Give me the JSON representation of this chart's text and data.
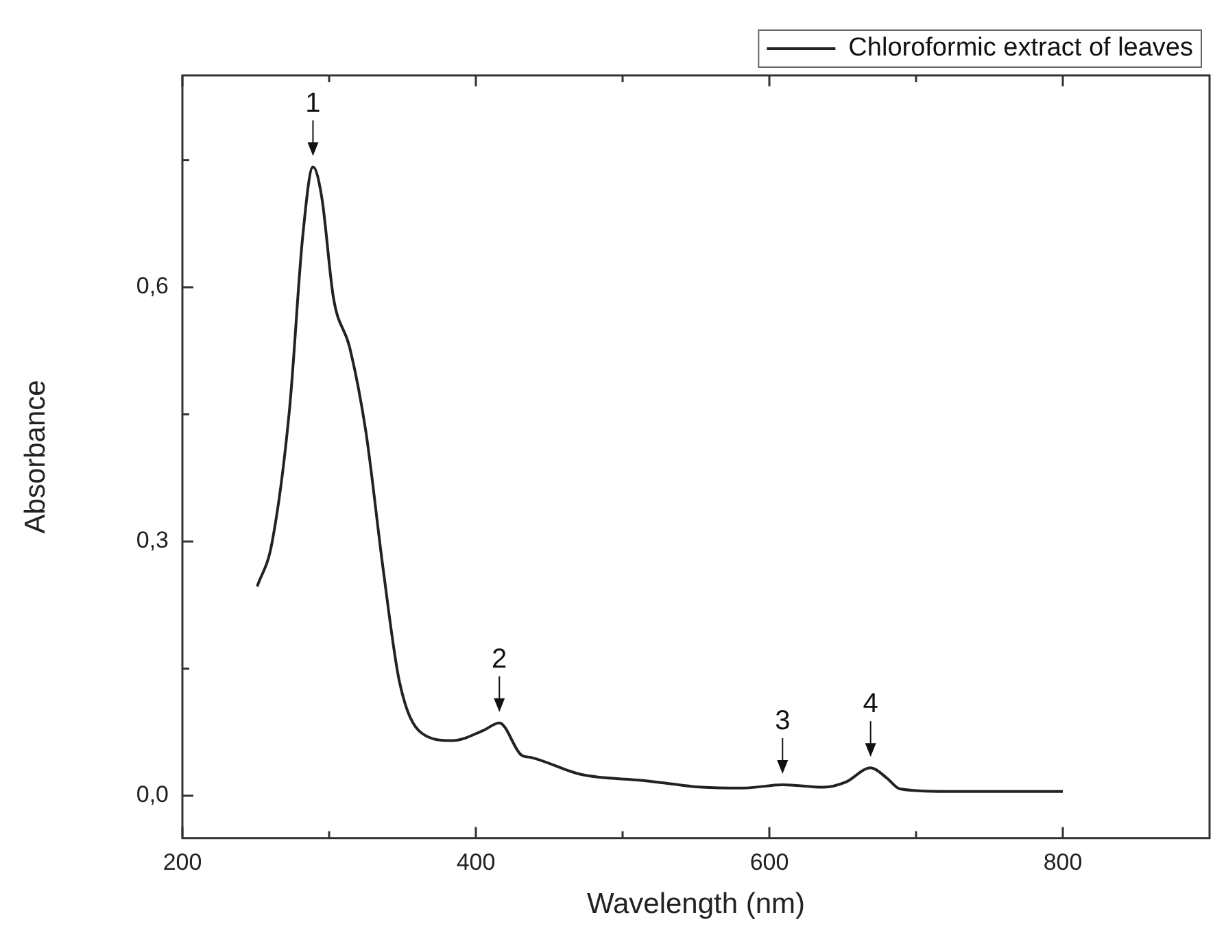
{
  "chart_data": {
    "type": "line",
    "xlabel": "Wavelength (nm)",
    "ylabel": "Absorbance",
    "legend": "top right",
    "grid": false,
    "marker": "none",
    "line_style": "solid",
    "xlim": [
      200,
      900
    ],
    "ylim": [
      -0.05,
      0.85
    ],
    "xticks": [
      200,
      {
        "value": 300,
        "label": null
      },
      400,
      {
        "value": 500,
        "label": null
      },
      600,
      {
        "value": 700,
        "label": null
      },
      800
    ],
    "yticks": [
      {
        "value": 0,
        "label": "0,0"
      },
      {
        "value": 0.15,
        "label": null
      },
      {
        "value": 0.3,
        "label": "0,3"
      },
      {
        "value": 0.45,
        "label": null
      },
      {
        "value": 0.6,
        "label": "0,6"
      },
      {
        "value": 0.75,
        "label": null
      }
    ],
    "series": [
      {
        "name": "Chloroformic extract of leaves",
        "color": "#222222",
        "x": [
          251,
          261,
          273,
          282,
          289,
          295,
          303,
          314,
          325,
          337,
          348,
          363,
          384,
          405,
          416,
          431,
          438,
          472,
          514,
          529,
          554,
          582,
          609,
          637,
          652,
          669,
          680,
          689,
          720,
          800
        ],
        "values": [
          0.247,
          0.298,
          0.456,
          0.66,
          0.742,
          0.706,
          0.587,
          0.529,
          0.43,
          0.265,
          0.134,
          0.074,
          0.065,
          0.077,
          0.086,
          0.048,
          0.045,
          0.025,
          0.018,
          0.015,
          0.01,
          0.009,
          0.013,
          0.01,
          0.016,
          0.033,
          0.021,
          0.008,
          0.005,
          0.005
        ]
      }
    ],
    "annotations": [
      {
        "text": "1",
        "x": 289,
        "y": 0.742
      },
      {
        "text": "2",
        "x": 416,
        "y": 0.086
      },
      {
        "text": "3",
        "x": 609,
        "y": 0.013
      },
      {
        "text": "4",
        "x": 669,
        "y": 0.033
      }
    ]
  }
}
